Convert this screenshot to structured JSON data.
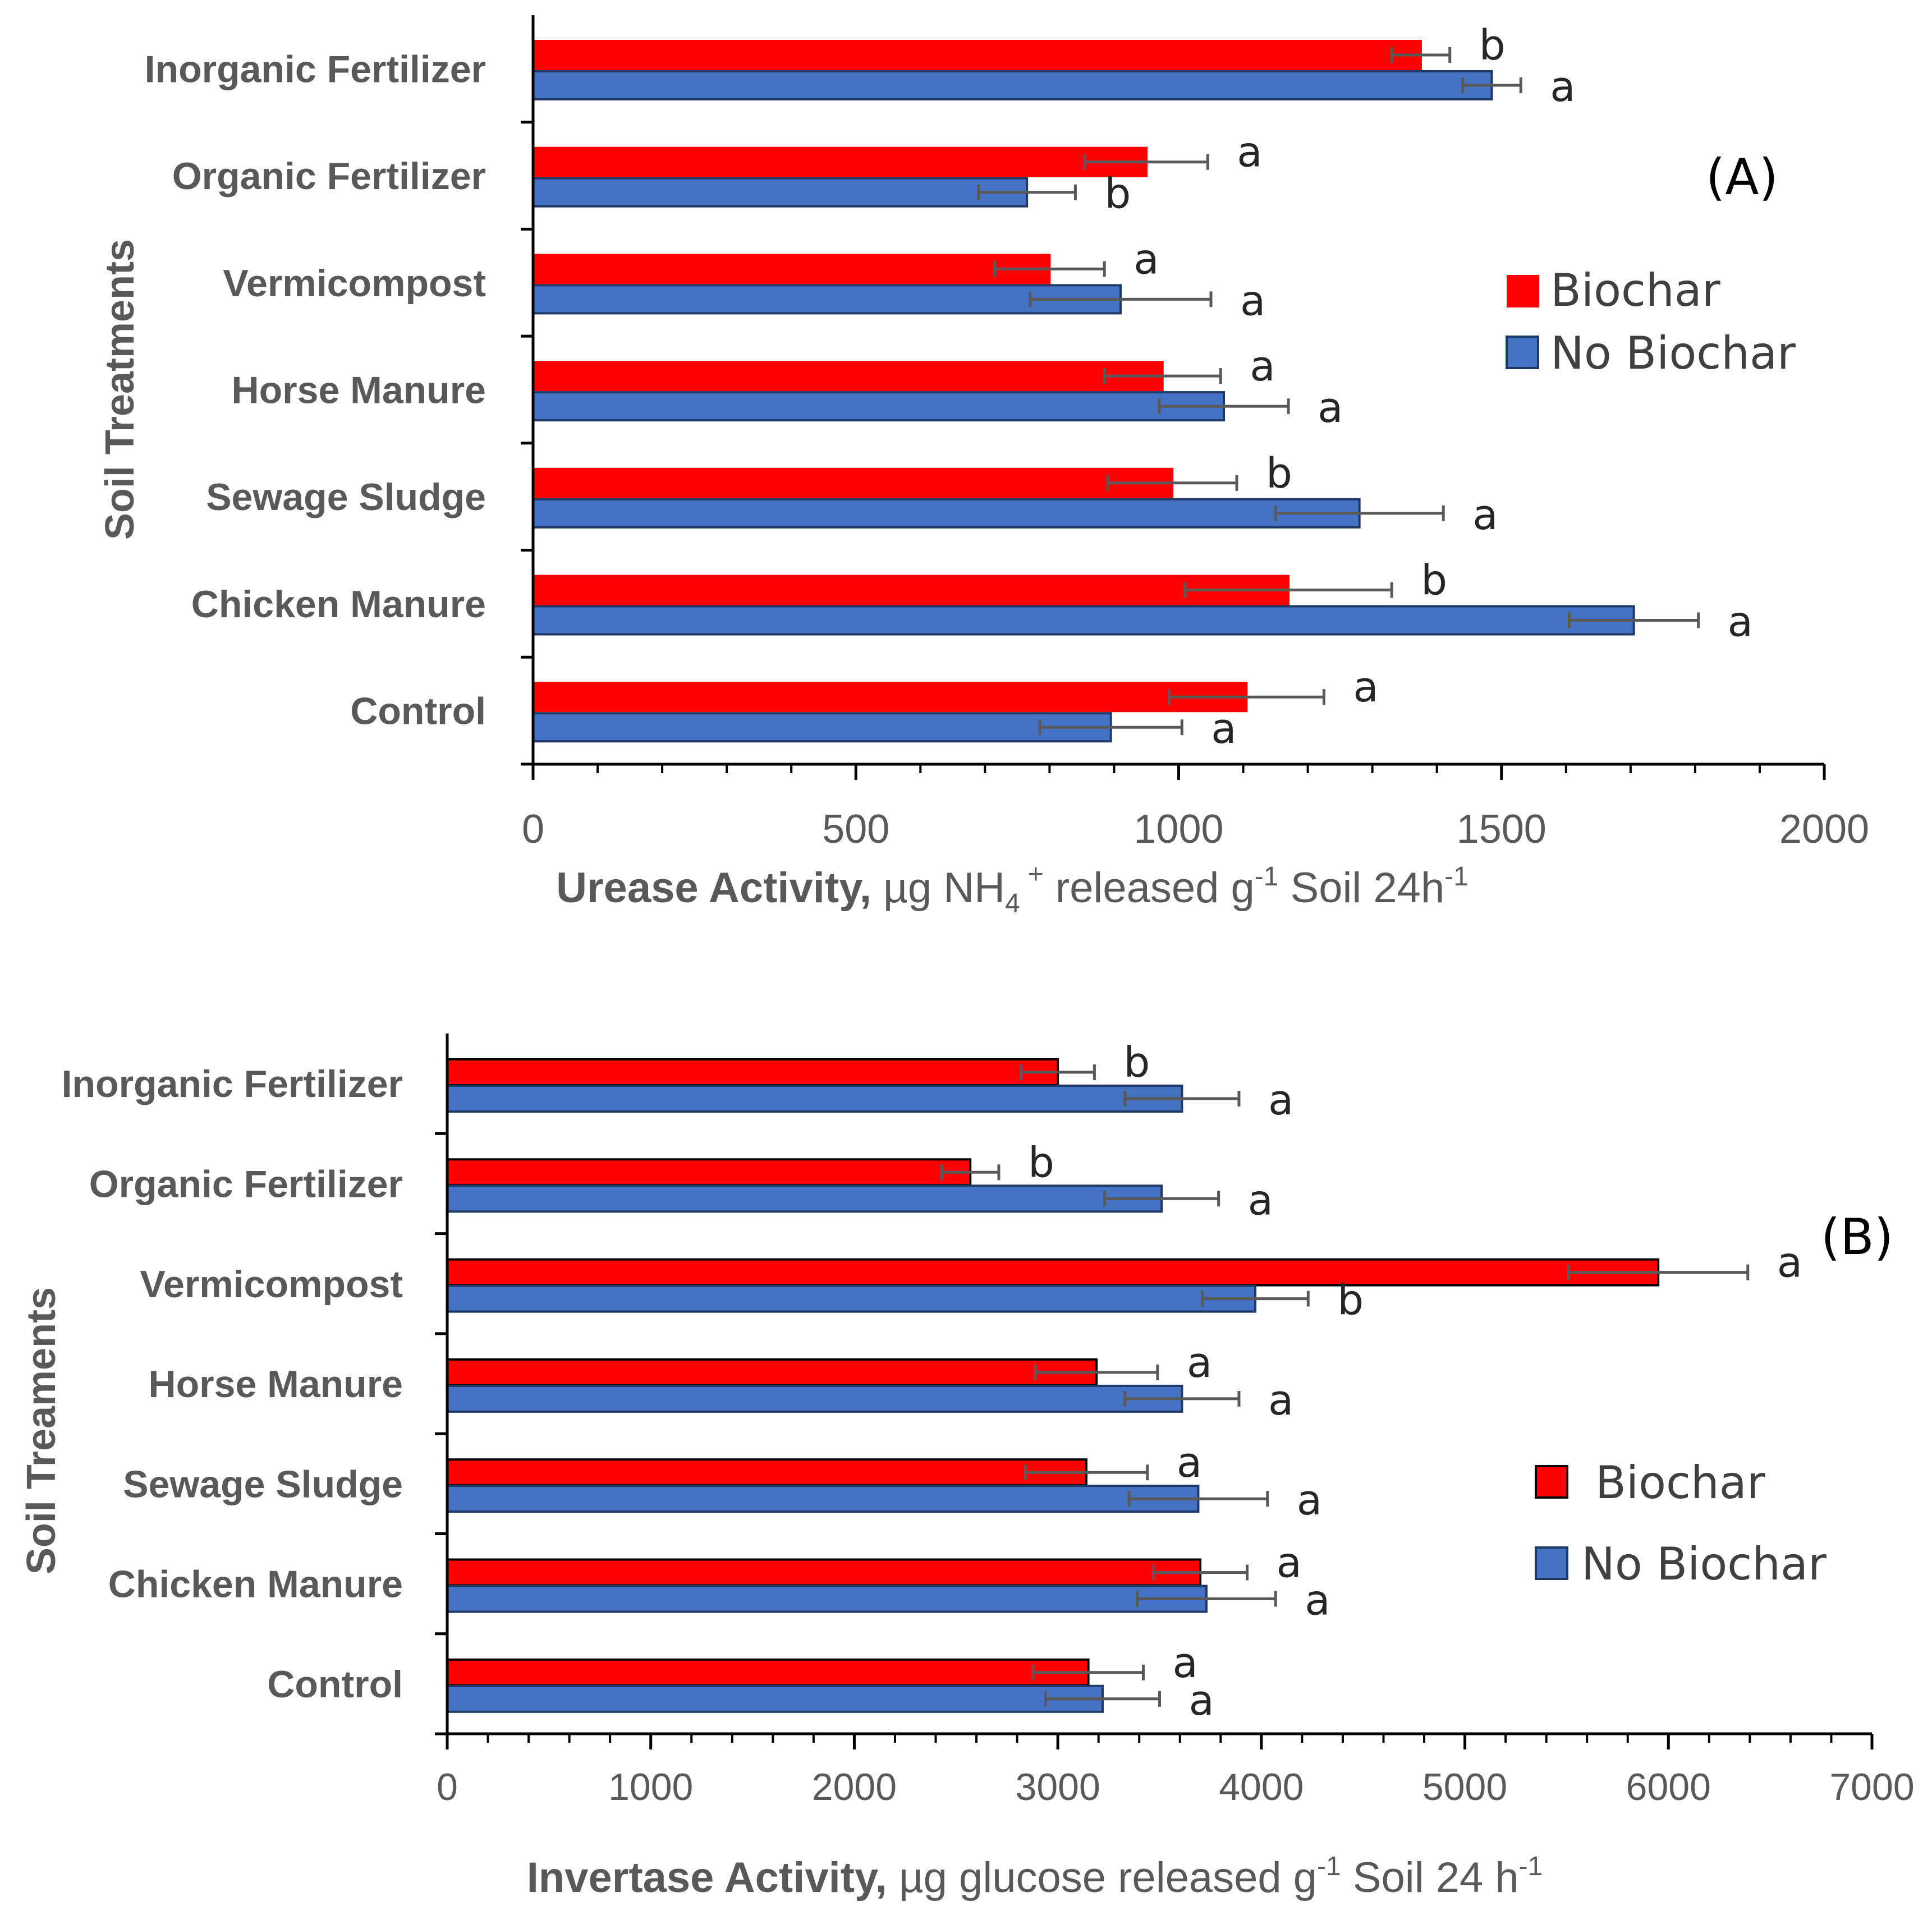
{
  "chart_data": [
    {
      "type": "bar",
      "orientation": "horizontal",
      "panel_label": "(A)",
      "categories": [
        "Inorganic Fertilizer",
        "Organic Fertilizer",
        "Vermicompost",
        "Horse Manure",
        "Sewage Sludge",
        "Chicken Manure",
        "Control"
      ],
      "series": [
        {
          "name": "Biochar",
          "color": "#ff0000",
          "values": [
            1375,
            950,
            800,
            975,
            990,
            1170,
            1105
          ],
          "errors": [
            45,
            95,
            85,
            90,
            100,
            160,
            120
          ],
          "letters": [
            "b",
            "a",
            "a",
            "a",
            "b",
            "b",
            "a"
          ]
        },
        {
          "name": "No Biochar",
          "color": "#4472c4",
          "values": [
            1485,
            765,
            910,
            1070,
            1280,
            1705,
            895
          ],
          "errors": [
            45,
            75,
            140,
            100,
            130,
            100,
            110
          ],
          "letters": [
            "a",
            "b",
            "a",
            "a",
            "a",
            "a",
            "a"
          ]
        }
      ],
      "xlim": [
        0,
        2000
      ],
      "xticks": [
        "0",
        "500",
        "1000",
        "1500",
        "2000"
      ],
      "ylabel": "Soil Treatments",
      "xlabel_bold": "Urease Activity,",
      "xlabel_unit": " µg NH",
      "xlabel_sub": "4",
      "xlabel_sup": "+",
      "xlabel_mid": " released g",
      "xlabel_sup2": "-1",
      "xlabel_end": " Soil 24h",
      "xlabel_sup3": "-1"
    },
    {
      "type": "bar",
      "orientation": "horizontal",
      "panel_label": "(B)",
      "categories": [
        "Inorganic Fertilizer",
        "Organic Fertilizer",
        "Vermicompost",
        "Horse Manure",
        "Sewage Sludge",
        "Chicken Manure",
        "Control"
      ],
      "series": [
        {
          "name": "Biochar",
          "color": "#ff0000",
          "values": [
            3000,
            2570,
            5950,
            3190,
            3140,
            3700,
            3150
          ],
          "errors": [
            180,
            140,
            440,
            300,
            300,
            230,
            270
          ],
          "letters": [
            "b",
            "b",
            "a",
            "a",
            "a",
            "a",
            "a"
          ]
        },
        {
          "name": "No Biochar",
          "color": "#4472c4",
          "values": [
            3610,
            3510,
            3970,
            3610,
            3690,
            3730,
            3220
          ],
          "errors": [
            280,
            280,
            260,
            280,
            340,
            340,
            280
          ],
          "letters": [
            "a",
            "a",
            "b",
            "a",
            "a",
            "a",
            "a"
          ]
        }
      ],
      "xlim": [
        0,
        7000
      ],
      "xticks": [
        "0",
        "1000",
        "2000",
        "3000",
        "4000",
        "5000",
        "6000",
        "7000"
      ],
      "ylabel": "Soil Treaments",
      "xlabel_bold": "Invertase Activity,",
      "xlabel_unit": " µg glucose released g",
      "xlabel_sup": "-1",
      "xlabel_end": " Soil 24 h",
      "xlabel_sup2": "-1"
    }
  ]
}
